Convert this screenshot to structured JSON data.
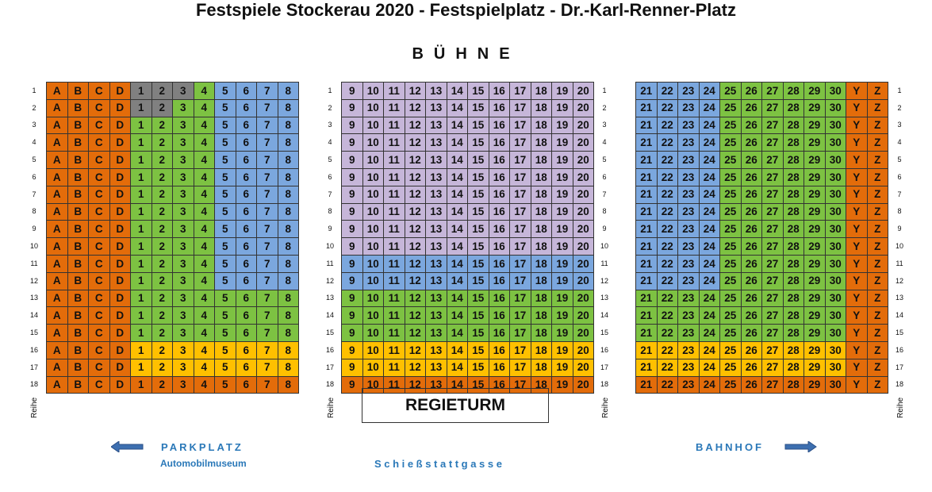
{
  "title": "Festspiele Stockerau 2020 - Festspielplatz - Dr.-Karl-Renner-Platz",
  "stage_label": "BÜHNE",
  "row_axis_label": "Reihe",
  "rows": [
    "1",
    "2",
    "3",
    "4",
    "5",
    "6",
    "7",
    "8",
    "9",
    "10",
    "11",
    "12",
    "13",
    "14",
    "15",
    "16",
    "17",
    "18"
  ],
  "regie_label": "REGIETURM",
  "parking_label": "PARKPLATZ",
  "parking_sublabel": "Automobilmuseum",
  "street_label": "Schießstattgasse",
  "station_label": "BAHNHOF",
  "colors": {
    "orange": "#e36c0a",
    "gray": "#808080",
    "green": "#7dc242",
    "blue": "#7ba7de",
    "lilac": "#c6b6d9",
    "yellow": "#ffc000",
    "link_blue": "#2a78b8"
  },
  "sections": {
    "left": {
      "seats": [
        "A",
        "B",
        "C",
        "D",
        "1",
        "2",
        "3",
        "4",
        "5",
        "6",
        "7",
        "8"
      ],
      "color_rows": [
        {
          "rows": [
            1
          ],
          "colors": [
            "orange",
            "orange",
            "orange",
            "orange",
            "gray",
            "gray",
            "gray",
            "green",
            "blue",
            "blue",
            "blue",
            "blue"
          ]
        },
        {
          "rows": [
            2
          ],
          "colors": [
            "orange",
            "orange",
            "orange",
            "orange",
            "gray",
            "gray",
            "green",
            "green",
            "blue",
            "blue",
            "blue",
            "blue"
          ]
        },
        {
          "rows": [
            3,
            12
          ],
          "colors": [
            "orange",
            "orange",
            "orange",
            "orange",
            "green",
            "green",
            "green",
            "green",
            "blue",
            "blue",
            "blue",
            "blue"
          ]
        },
        {
          "rows": [
            13,
            15
          ],
          "colors": [
            "orange",
            "orange",
            "orange",
            "orange",
            "green",
            "green",
            "green",
            "green",
            "green",
            "green",
            "green",
            "green"
          ]
        },
        {
          "rows": [
            16,
            17
          ],
          "colors": [
            "orange",
            "orange",
            "orange",
            "orange",
            "yellow",
            "yellow",
            "yellow",
            "yellow",
            "yellow",
            "yellow",
            "yellow",
            "yellow"
          ]
        },
        {
          "rows": [
            18
          ],
          "colors": [
            "orange",
            "orange",
            "orange",
            "orange",
            "orange",
            "orange",
            "orange",
            "orange",
            "orange",
            "orange",
            "orange",
            "orange"
          ]
        }
      ]
    },
    "center": {
      "seats": [
        "9",
        "10",
        "11",
        "12",
        "13",
        "14",
        "15",
        "16",
        "17",
        "18",
        "19",
        "20"
      ],
      "color_rows": [
        {
          "rows": [
            1,
            10
          ],
          "fill": "lilac"
        },
        {
          "rows": [
            11,
            12
          ],
          "fill": "blue"
        },
        {
          "rows": [
            13,
            15
          ],
          "fill": "green"
        },
        {
          "rows": [
            16,
            17
          ],
          "fill": "yellow"
        },
        {
          "rows": [
            18
          ],
          "fill": "orange"
        }
      ]
    },
    "right": {
      "seats": [
        "21",
        "22",
        "23",
        "24",
        "25",
        "26",
        "27",
        "28",
        "29",
        "30",
        "Y",
        "Z"
      ],
      "color_rows": [
        {
          "rows": [
            1,
            12
          ],
          "colors": [
            "blue",
            "blue",
            "blue",
            "blue",
            "green",
            "green",
            "green",
            "green",
            "green",
            "green",
            "orange",
            "orange"
          ]
        },
        {
          "rows": [
            13,
            15
          ],
          "colors": [
            "green",
            "green",
            "green",
            "green",
            "green",
            "green",
            "green",
            "green",
            "green",
            "green",
            "orange",
            "orange"
          ]
        },
        {
          "rows": [
            16,
            17
          ],
          "colors": [
            "yellow",
            "yellow",
            "yellow",
            "yellow",
            "yellow",
            "yellow",
            "yellow",
            "yellow",
            "yellow",
            "yellow",
            "orange",
            "orange"
          ]
        },
        {
          "rows": [
            18
          ],
          "colors": [
            "orange",
            "orange",
            "orange",
            "orange",
            "orange",
            "orange",
            "orange",
            "orange",
            "orange",
            "orange",
            "orange",
            "orange"
          ]
        }
      ]
    }
  }
}
